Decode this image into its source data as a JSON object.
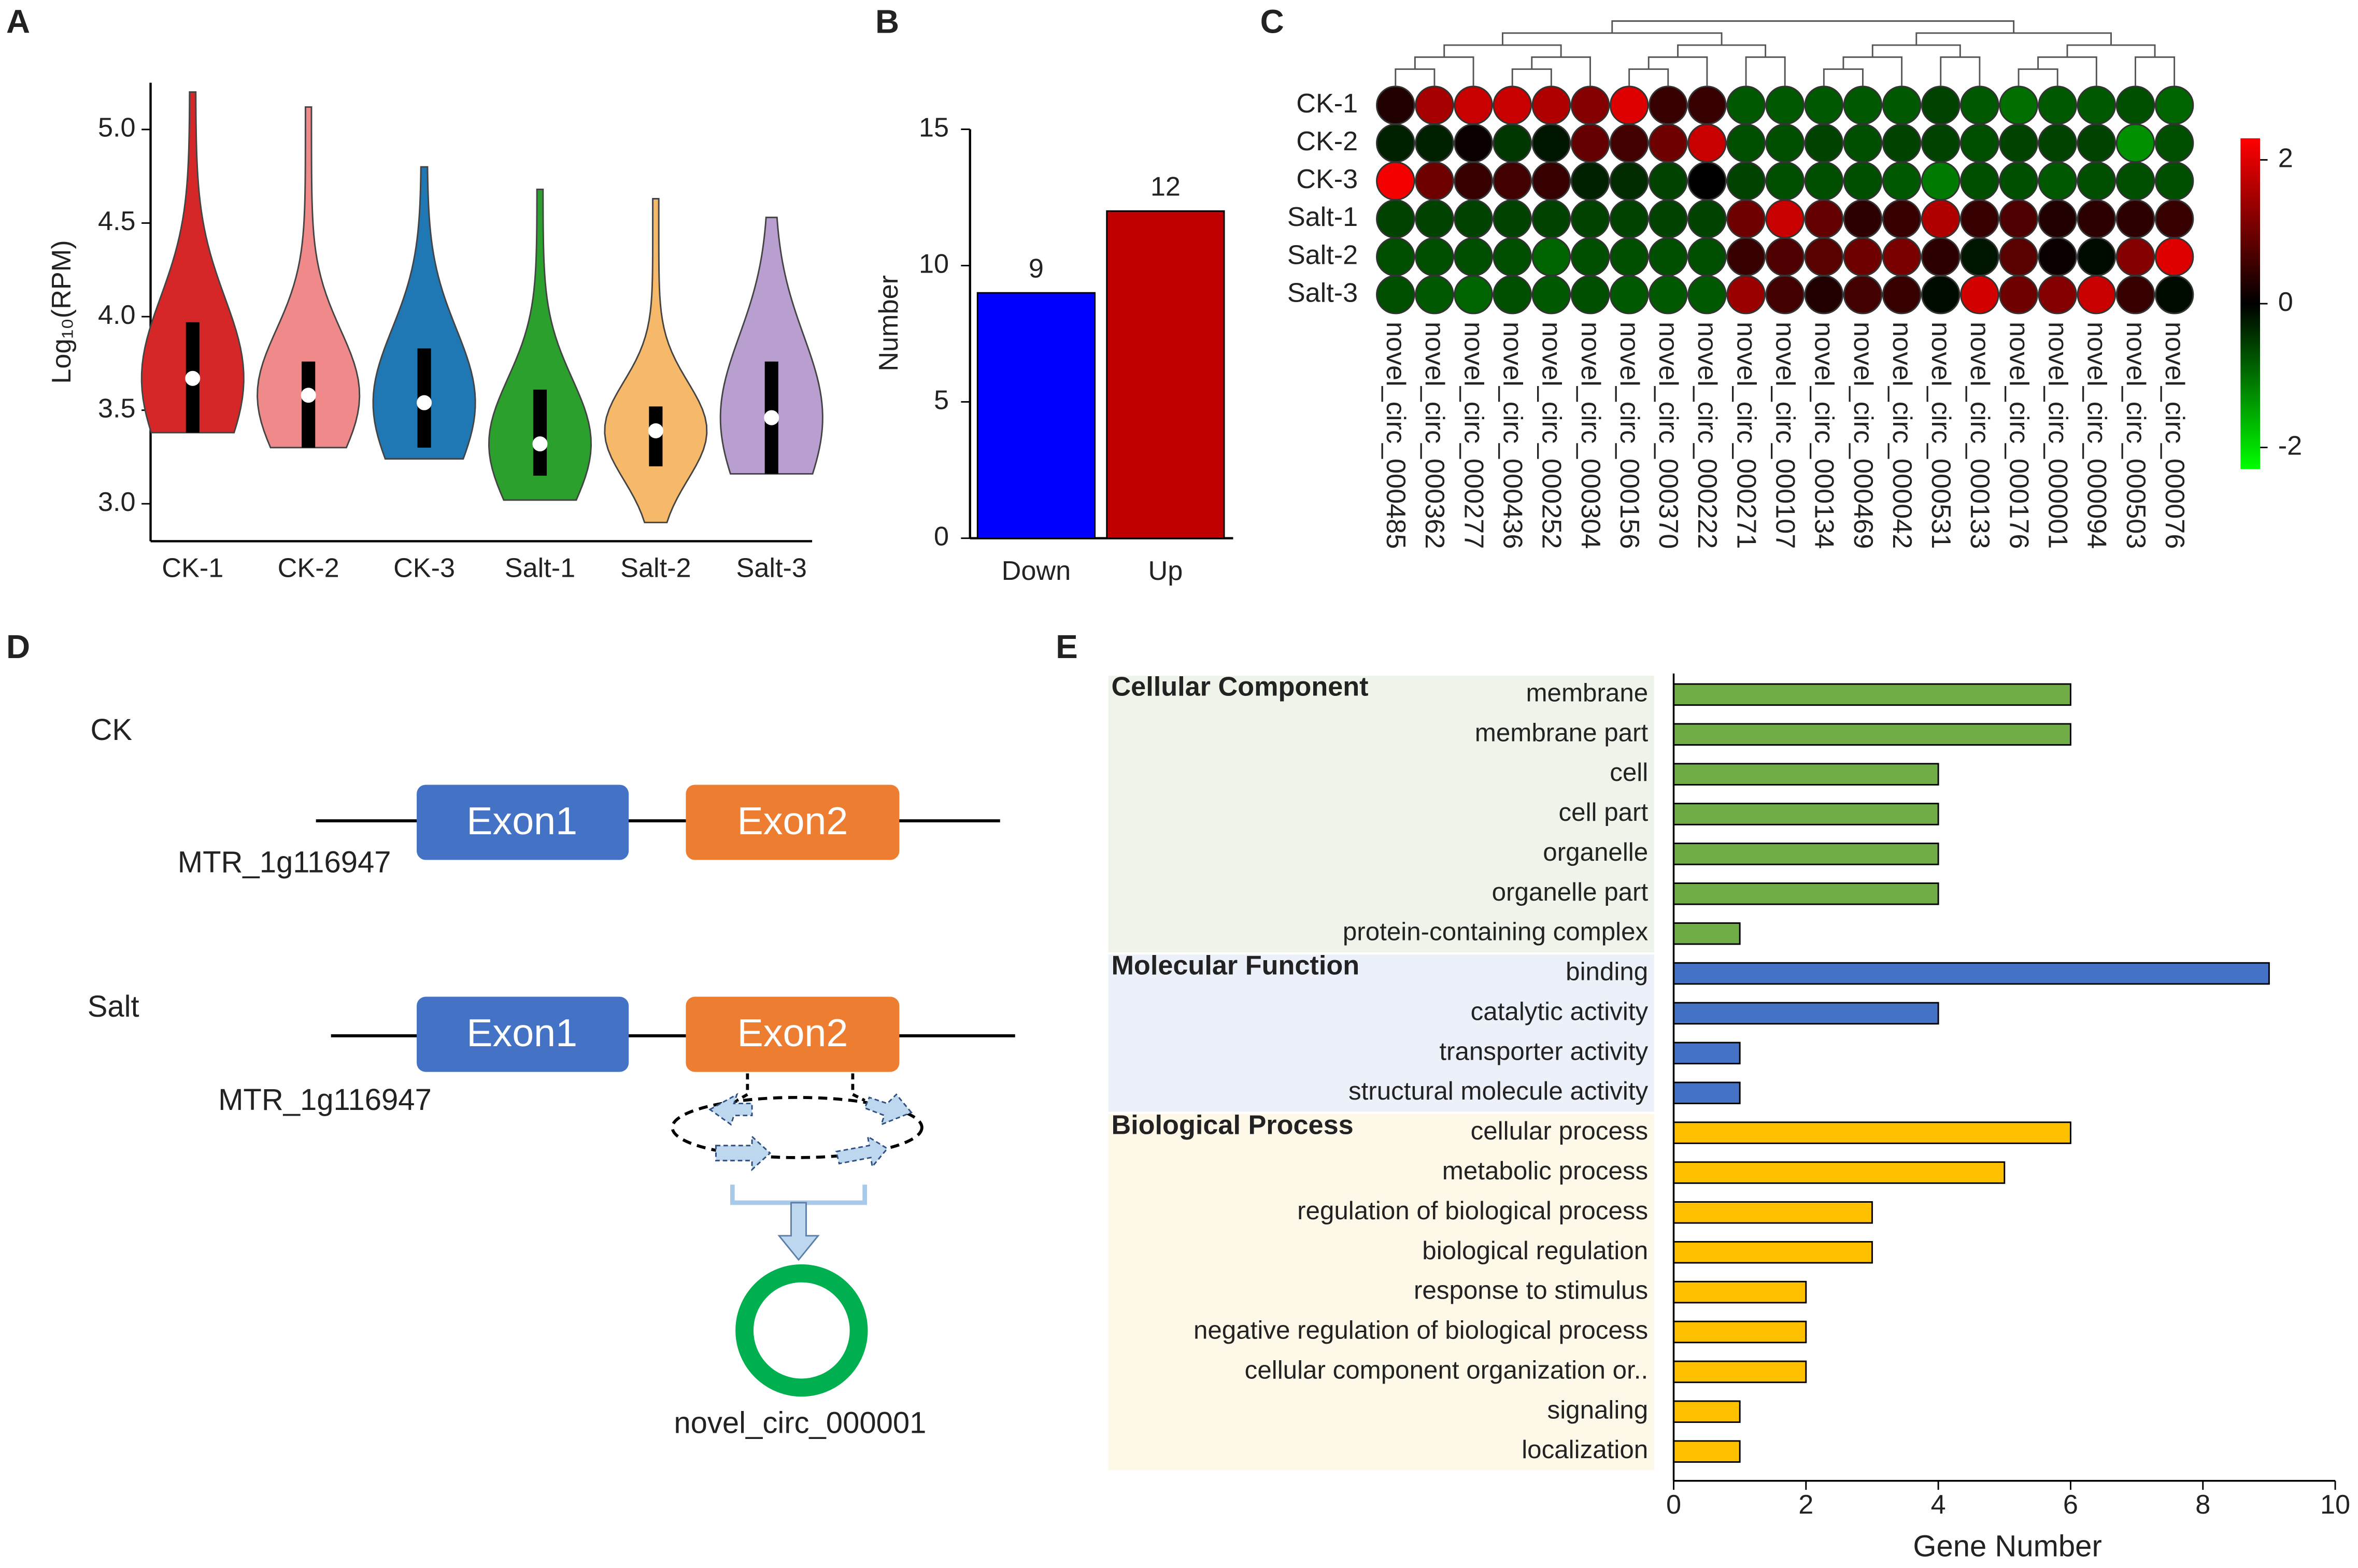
{
  "chart_data": [
    {
      "type": "violin",
      "panel": "A",
      "ylabel": "Log₁₀(RPM)",
      "categories": [
        "CK-1",
        "CK-2",
        "CK-3",
        "Salt-1",
        "Salt-2",
        "Salt-3"
      ],
      "colors": [
        "#d62728",
        "#f08a8a",
        "#1f77b4",
        "#2ca02c",
        "#f5b969",
        "#b89fd0"
      ],
      "min": [
        3.38,
        3.3,
        3.24,
        3.02,
        2.9,
        3.16
      ],
      "q1": [
        3.38,
        3.3,
        3.3,
        3.15,
        3.2,
        3.16
      ],
      "median": [
        3.67,
        3.58,
        3.54,
        3.32,
        3.39,
        3.46
      ],
      "q3": [
        3.97,
        3.76,
        3.83,
        3.61,
        3.52,
        3.76
      ],
      "max": [
        5.2,
        5.12,
        4.8,
        4.68,
        4.63,
        4.53
      ],
      "ylim": [
        2.8,
        5.25
      ],
      "yticks": [
        {
          "value": 3,
          "label": "3.0"
        },
        3.5,
        {
          "value": 4,
          "label": "4.0"
        },
        4.5,
        {
          "value": 5,
          "label": "5.0"
        }
      ]
    },
    {
      "type": "bar",
      "panel": "B",
      "ylabel": "Number",
      "categories": [
        "Down",
        "Up"
      ],
      "values": [
        9,
        12
      ],
      "colors": [
        "#0000ff",
        "#c00000"
      ],
      "ylim": [
        0,
        15
      ],
      "yticks": [
        0,
        5,
        10,
        15
      ]
    },
    {
      "type": "heatmap",
      "panel": "C",
      "rows": [
        "CK-1",
        "CK-2",
        "CK-3",
        "Salt-1",
        "Salt-2",
        "Salt-3"
      ],
      "columns": [
        "novel_circ_000485",
        "novel_circ_000362",
        "novel_circ_000277",
        "novel_circ_000436",
        "novel_circ_000252",
        "novel_circ_000304",
        "novel_circ_000156",
        "novel_circ_000370",
        "novel_circ_000222",
        "novel_circ_000271",
        "novel_circ_000107",
        "novel_circ_000134",
        "novel_circ_000469",
        "novel_circ_000042",
        "novel_circ_000531",
        "novel_circ_000133",
        "novel_circ_000176",
        "novel_circ_000001",
        "novel_circ_000094",
        "novel_circ_000503",
        "novel_circ_000076"
      ],
      "values": [
        [
          0.3,
          1.5,
          1.8,
          1.8,
          1.6,
          1.2,
          2.0,
          0.5,
          0.5,
          -0.8,
          -0.8,
          -0.8,
          -0.8,
          -0.8,
          -0.6,
          -0.8,
          -1.0,
          -0.8,
          -0.8,
          -0.7,
          -0.9
        ],
        [
          -0.3,
          -0.3,
          0.1,
          -0.5,
          -0.2,
          0.9,
          0.6,
          1.0,
          1.8,
          -0.7,
          -0.7,
          -0.6,
          -0.7,
          -0.6,
          -0.6,
          -0.7,
          -0.6,
          -0.6,
          -0.6,
          -1.3,
          -0.7
        ],
        [
          2.2,
          1.0,
          0.5,
          0.6,
          0.5,
          -0.3,
          -0.4,
          -0.6,
          0.0,
          -0.6,
          -0.7,
          -0.7,
          -0.7,
          -0.8,
          -1.1,
          -0.7,
          -0.7,
          -0.8,
          -0.7,
          -0.7,
          -0.7
        ],
        [
          -0.6,
          -0.6,
          -0.6,
          -0.6,
          -0.6,
          -0.6,
          -0.6,
          -0.6,
          -0.6,
          1.0,
          1.8,
          0.9,
          0.4,
          0.5,
          1.6,
          0.5,
          0.7,
          0.3,
          0.4,
          0.4,
          0.5
        ],
        [
          -0.7,
          -0.7,
          -0.7,
          -0.7,
          -0.9,
          -0.7,
          -0.7,
          -0.7,
          -0.7,
          0.5,
          0.7,
          0.8,
          1.0,
          1.1,
          0.4,
          -0.2,
          0.8,
          0.1,
          -0.1,
          1.2,
          2.0
        ],
        [
          -0.7,
          -0.8,
          -0.9,
          -0.7,
          -0.8,
          -0.7,
          -0.8,
          -0.8,
          -0.8,
          1.4,
          0.6,
          0.3,
          0.6,
          0.5,
          -0.1,
          1.9,
          1.0,
          1.2,
          1.8,
          0.5,
          -0.1
        ]
      ],
      "clim": [
        -2.3,
        2.3
      ],
      "cticks": [
        2,
        0,
        -2
      ],
      "colors": [
        "#00ff00",
        "#000000",
        "#ff0000"
      ]
    },
    {
      "type": "hbar",
      "panel": "E",
      "xlabel": "Gene Number",
      "xlim": [
        0,
        10
      ],
      "xticks": [
        0,
        2,
        4,
        6,
        8,
        10
      ],
      "series": [
        {
          "name": "Cellular Component",
          "color": "#70ad47",
          "background": "#eef4e9",
          "categories": [
            "membrane",
            "membrane part",
            "cell",
            "cell part",
            "organelle",
            "organelle part",
            "protein-containing complex"
          ],
          "values": [
            6,
            6,
            4,
            4,
            4,
            4,
            1
          ]
        },
        {
          "name": "Molecular Function",
          "color": "#4472c4",
          "background": "#ecf0f8",
          "categories": [
            "binding",
            "catalytic activity",
            "transporter activity",
            "structural molecule activity"
          ],
          "values": [
            9,
            4,
            1,
            1
          ]
        },
        {
          "name": "Biological Process",
          "color": "#ffc000",
          "background": "#fdf8e8",
          "categories": [
            "cellular process",
            "metabolic process",
            "regulation of biological process",
            "biological regulation",
            "response to stimulus",
            "negative regulation of biological process",
            "cellular component organization or..",
            "signaling",
            "localization"
          ],
          "values": [
            6,
            5,
            3,
            3,
            2,
            2,
            2,
            1,
            1
          ]
        }
      ]
    }
  ],
  "diagram": {
    "panel": "D",
    "conditions": [
      {
        "label": "CK",
        "gene": "MTR_1g116947",
        "exons": [
          "Exon1",
          "Exon2"
        ]
      },
      {
        "label": "Salt",
        "gene": "MTR_1g116947",
        "exons": [
          "Exon1",
          "Exon2"
        ]
      }
    ],
    "product": "novel_circ_000001"
  }
}
